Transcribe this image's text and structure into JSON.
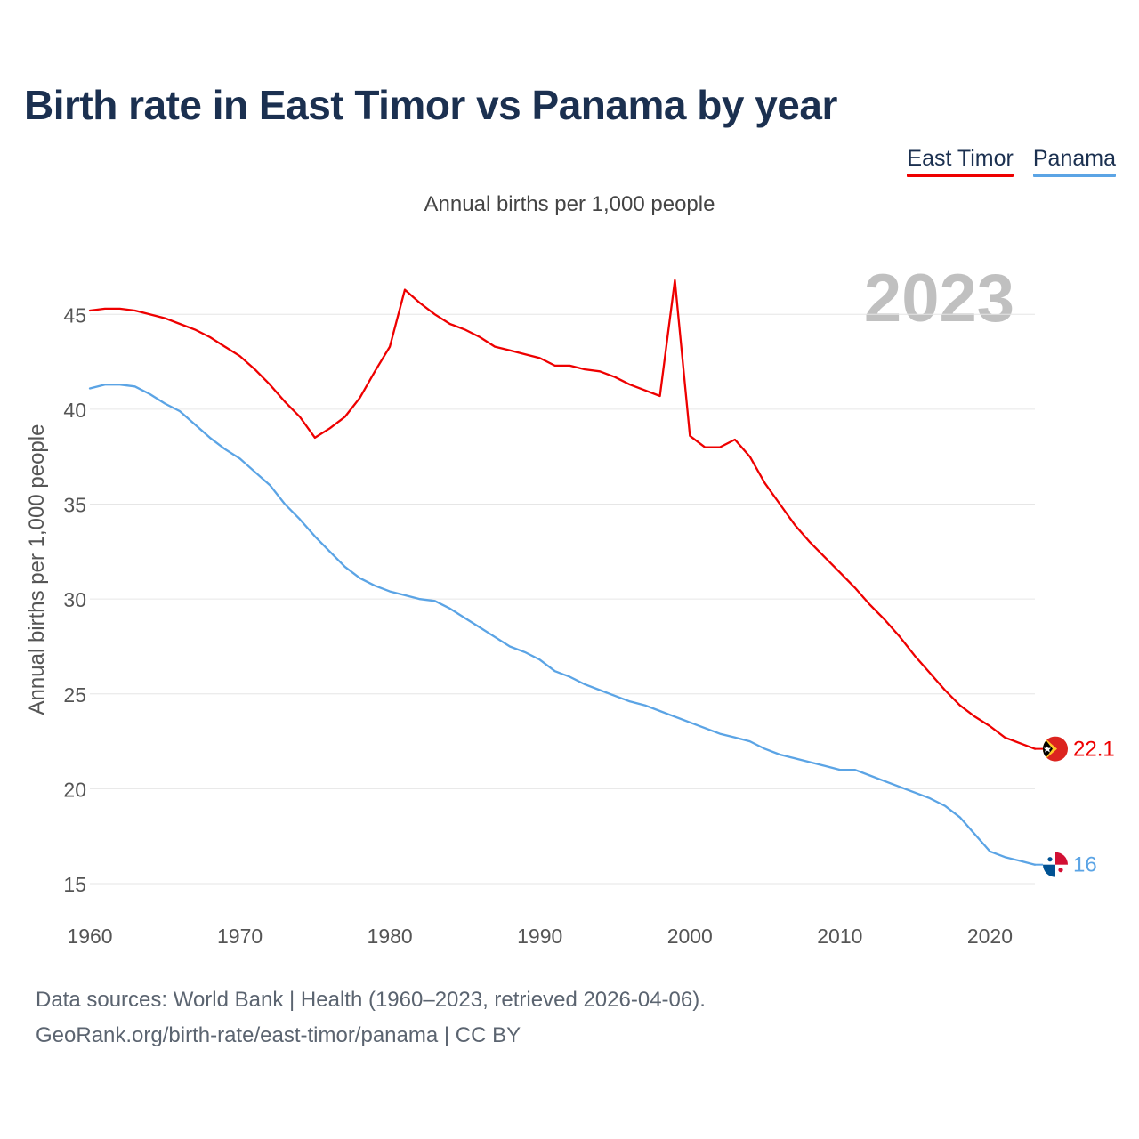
{
  "title": "Birth rate in East Timor vs Panama by year",
  "subtitle": "Annual births per 1,000 people",
  "year_label": "2023",
  "legend": [
    {
      "label": "East Timor",
      "color": "#ee0000"
    },
    {
      "label": "Panama",
      "color": "#5ba4e5"
    }
  ],
  "footer": {
    "line1": "Data sources: World Bank | Health (1960–2023, retrieved 2026-04-06).",
    "line2": "GeoRank.org/birth-rate/east-timor/panama | CC BY"
  },
  "chart_data": {
    "type": "line",
    "title": "Birth rate in East Timor vs Panama by year",
    "ylabel": "Annual births per 1,000 people",
    "xlabel": "",
    "xlim": [
      1960,
      2023
    ],
    "ylim": [
      13.5,
      47.5
    ],
    "x_ticks": [
      1960,
      1970,
      1980,
      1990,
      2000,
      2010,
      2020
    ],
    "y_ticks": [
      15,
      20,
      25,
      30,
      35,
      40,
      45
    ],
    "grid": true,
    "x": [
      1960,
      1961,
      1962,
      1963,
      1964,
      1965,
      1966,
      1967,
      1968,
      1969,
      1970,
      1971,
      1972,
      1973,
      1974,
      1975,
      1976,
      1977,
      1978,
      1979,
      1980,
      1981,
      1982,
      1983,
      1984,
      1985,
      1986,
      1987,
      1988,
      1989,
      1990,
      1991,
      1992,
      1993,
      1994,
      1995,
      1996,
      1997,
      1998,
      1999,
      2000,
      2001,
      2002,
      2003,
      2004,
      2005,
      2006,
      2007,
      2008,
      2009,
      2010,
      2011,
      2012,
      2013,
      2014,
      2015,
      2016,
      2017,
      2018,
      2019,
      2020,
      2021,
      2022,
      2023
    ],
    "series": [
      {
        "name": "East Timor",
        "color": "#ee0000",
        "end_label": "22.1",
        "flag": "east-timor-flag-icon",
        "values": [
          45.2,
          45.3,
          45.3,
          45.2,
          45.0,
          44.8,
          44.5,
          44.2,
          43.8,
          43.3,
          42.8,
          42.1,
          41.3,
          40.4,
          39.6,
          38.5,
          39.0,
          39.6,
          40.6,
          42.0,
          43.3,
          46.3,
          45.6,
          45.0,
          44.5,
          44.2,
          43.8,
          43.3,
          43.1,
          42.9,
          42.7,
          42.3,
          42.3,
          42.1,
          42.0,
          41.7,
          41.3,
          41.0,
          40.7,
          46.8,
          38.6,
          38.0,
          38.0,
          38.4,
          37.5,
          36.1,
          35.0,
          33.9,
          33.0,
          32.2,
          31.4,
          30.6,
          29.7,
          28.9,
          28.0,
          27.0,
          26.1,
          25.2,
          24.4,
          23.8,
          23.3,
          22.7,
          22.4,
          22.1
        ]
      },
      {
        "name": "Panama",
        "color": "#5ba4e5",
        "end_label": "16",
        "flag": "panama-flag-icon",
        "values": [
          41.1,
          41.3,
          41.3,
          41.2,
          40.8,
          40.3,
          39.9,
          39.2,
          38.5,
          37.9,
          37.4,
          36.7,
          36.0,
          35.0,
          34.2,
          33.3,
          32.5,
          31.7,
          31.1,
          30.7,
          30.4,
          30.2,
          30.0,
          29.9,
          29.5,
          29.0,
          28.5,
          28.0,
          27.5,
          27.2,
          26.8,
          26.2,
          25.9,
          25.5,
          25.2,
          24.9,
          24.6,
          24.4,
          24.1,
          23.8,
          23.5,
          23.2,
          22.9,
          22.7,
          22.5,
          22.1,
          21.8,
          21.6,
          21.4,
          21.2,
          21.0,
          21.0,
          20.7,
          20.4,
          20.1,
          19.8,
          19.5,
          19.1,
          18.5,
          17.6,
          16.7,
          16.4,
          16.2,
          16.0
        ]
      }
    ]
  }
}
